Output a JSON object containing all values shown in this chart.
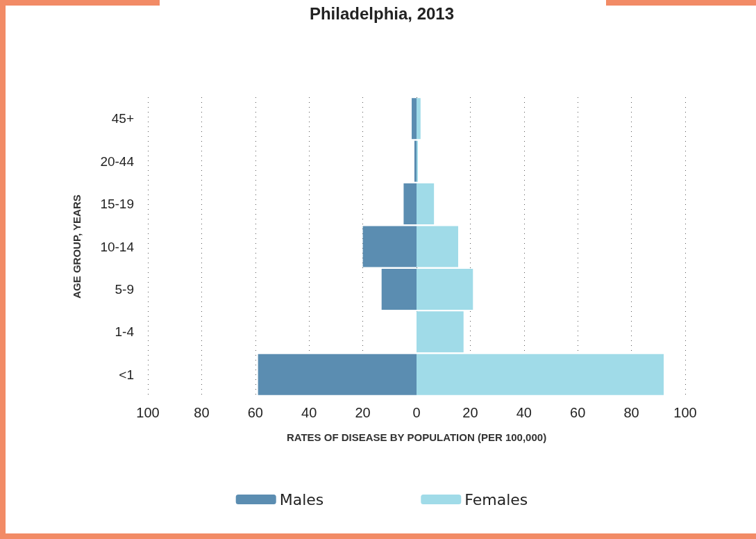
{
  "chart_data": {
    "type": "bar",
    "orientation": "horizontal",
    "title": "Philadelphia, 2013",
    "xlabel": "RATES OF DISEASE BY POPULATION (PER 100,000)",
    "ylabel": "AGE GROUP, YEARS",
    "categories": [
      "45+",
      "20-44",
      "15-19",
      "10-14",
      "5-9",
      "1-4",
      "<1"
    ],
    "series": [
      {
        "name": "Males",
        "color": "#5b8db1",
        "values": [
          -1.8,
          -0.8,
          -4.8,
          -20,
          -13,
          0,
          -59
        ]
      },
      {
        "name": "Females",
        "color": "#a0dbe8",
        "values": [
          1.5,
          0.5,
          6.5,
          15.5,
          21,
          17.5,
          92
        ]
      }
    ],
    "xlim": [
      -100,
      100
    ],
    "xticks": [
      {
        "value": -100,
        "label": "100"
      },
      {
        "value": -80,
        "label": "80"
      },
      {
        "value": -60,
        "label": "60"
      },
      {
        "value": -40,
        "label": "40"
      },
      {
        "value": -20,
        "label": "20"
      },
      0,
      20,
      40,
      60,
      80,
      100
    ],
    "grid": "x",
    "legend": "bottom",
    "stacked": true
  }
}
